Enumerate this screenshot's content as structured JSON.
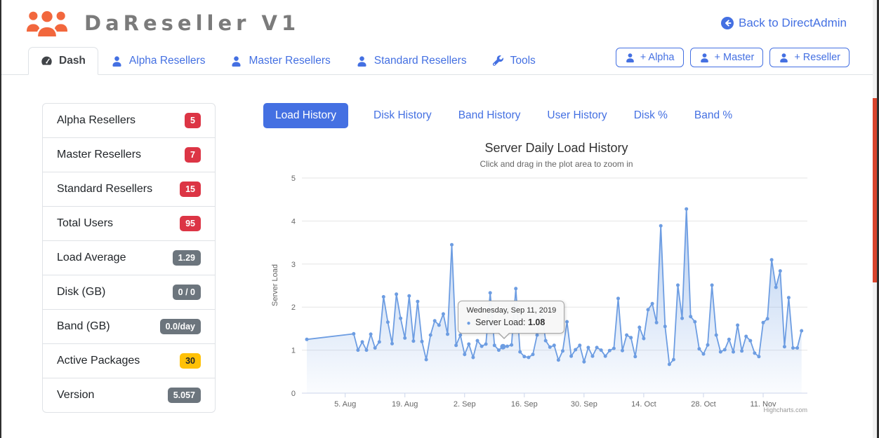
{
  "brand": {
    "display": "DaReseller V1"
  },
  "header": {
    "back_link": "Back to DirectAdmin"
  },
  "nav": {
    "tabs": [
      {
        "label": "Dash",
        "icon": "dashboard-icon",
        "active": true
      },
      {
        "label": "Alpha Resellers",
        "icon": "user-icon",
        "active": false
      },
      {
        "label": "Master Resellers",
        "icon": "user-icon",
        "active": false
      },
      {
        "label": "Standard Resellers",
        "icon": "user-icon",
        "active": false
      },
      {
        "label": "Tools",
        "icon": "wrench-icon",
        "active": false
      }
    ],
    "actions": [
      {
        "label": "+ Alpha",
        "icon": "user-icon"
      },
      {
        "label": "+ Master",
        "icon": "user-icon"
      },
      {
        "label": "+ Reseller",
        "icon": "user-icon"
      }
    ]
  },
  "sidebar": {
    "items": [
      {
        "label": "Alpha Resellers",
        "badge": "5",
        "badge_style": "danger"
      },
      {
        "label": "Master Resellers",
        "badge": "7",
        "badge_style": "danger"
      },
      {
        "label": "Standard Resellers",
        "badge": "15",
        "badge_style": "danger"
      },
      {
        "label": "Total Users",
        "badge": "95",
        "badge_style": "danger"
      },
      {
        "label": "Load Average",
        "badge": "1.29",
        "badge_style": "secondary"
      },
      {
        "label": "Disk (GB)",
        "badge": "0 / 0",
        "badge_style": "secondary"
      },
      {
        "label": "Band (GB)",
        "badge": "0.0/day",
        "badge_style": "secondary"
      },
      {
        "label": "Active Packages",
        "badge": "30",
        "badge_style": "warning"
      },
      {
        "label": "Version",
        "badge": "5.057",
        "badge_style": "secondary"
      }
    ]
  },
  "chart_tabs": [
    {
      "label": "Load History",
      "active": true
    },
    {
      "label": "Disk History",
      "active": false
    },
    {
      "label": "Band History",
      "active": false
    },
    {
      "label": "User History",
      "active": false
    },
    {
      "label": "Disk %",
      "active": false
    },
    {
      "label": "Band %",
      "active": false
    }
  ],
  "chart_data": {
    "type": "area",
    "title": "Server Daily Load History",
    "subtitle": "Click and drag in the plot area to zoom in",
    "ylabel": "Server Load",
    "ylim": [
      0,
      5
    ],
    "yticks": [
      0,
      1,
      2,
      3,
      4,
      5
    ],
    "grid": true,
    "legend": false,
    "xticks": [
      {
        "label": "5. Aug",
        "date": "2019-08-05"
      },
      {
        "label": "19. Aug",
        "date": "2019-08-19"
      },
      {
        "label": "2. Sep",
        "date": "2019-09-02"
      },
      {
        "label": "16. Sep",
        "date": "2019-09-16"
      },
      {
        "label": "30. Sep",
        "date": "2019-09-30"
      },
      {
        "label": "14. Oct",
        "date": "2019-10-14"
      },
      {
        "label": "28. Oct",
        "date": "2019-10-28"
      },
      {
        "label": "11. Nov",
        "date": "2019-11-11"
      }
    ],
    "series": [
      {
        "name": "Server Load",
        "color": "#6d9de2",
        "points": [
          [
            "2019-07-27",
            1.25
          ],
          [
            "2019-08-07",
            1.38
          ],
          [
            "2019-08-08",
            1.0
          ],
          [
            "2019-08-09",
            1.19
          ],
          [
            "2019-08-10",
            1.0
          ],
          [
            "2019-08-11",
            1.37
          ],
          [
            "2019-08-12",
            1.05
          ],
          [
            "2019-08-13",
            1.19
          ],
          [
            "2019-08-14",
            2.24
          ],
          [
            "2019-08-15",
            1.65
          ],
          [
            "2019-08-16",
            1.15
          ],
          [
            "2019-08-17",
            2.3
          ],
          [
            "2019-08-18",
            1.74
          ],
          [
            "2019-08-19",
            1.28
          ],
          [
            "2019-08-20",
            2.26
          ],
          [
            "2019-08-21",
            1.21
          ],
          [
            "2019-08-22",
            2.13
          ],
          [
            "2019-08-23",
            1.2
          ],
          [
            "2019-08-24",
            0.78
          ],
          [
            "2019-08-25",
            1.35
          ],
          [
            "2019-08-26",
            1.68
          ],
          [
            "2019-08-27",
            1.58
          ],
          [
            "2019-08-28",
            1.84
          ],
          [
            "2019-08-29",
            1.37
          ],
          [
            "2019-08-30",
            3.45
          ],
          [
            "2019-08-31",
            1.11
          ],
          [
            "2019-09-01",
            1.35
          ],
          [
            "2019-09-02",
            0.9
          ],
          [
            "2019-09-03",
            1.14
          ],
          [
            "2019-09-04",
            0.83
          ],
          [
            "2019-09-05",
            1.22
          ],
          [
            "2019-09-06",
            1.09
          ],
          [
            "2019-09-07",
            1.14
          ],
          [
            "2019-09-08",
            2.33
          ],
          [
            "2019-09-09",
            1.11
          ],
          [
            "2019-09-10",
            1.0
          ],
          [
            "2019-09-11",
            1.08
          ],
          [
            "2019-09-12",
            1.09
          ],
          [
            "2019-09-13",
            1.12
          ],
          [
            "2019-09-14",
            2.43
          ],
          [
            "2019-09-15",
            0.96
          ],
          [
            "2019-09-16",
            0.85
          ],
          [
            "2019-09-17",
            0.83
          ],
          [
            "2019-09-18",
            0.9
          ],
          [
            "2019-09-19",
            1.35
          ],
          [
            "2019-09-20",
            1.93
          ],
          [
            "2019-09-21",
            1.22
          ],
          [
            "2019-09-22",
            1.07
          ],
          [
            "2019-09-23",
            1.11
          ],
          [
            "2019-09-24",
            0.77
          ],
          [
            "2019-09-25",
            0.98
          ],
          [
            "2019-09-26",
            1.66
          ],
          [
            "2019-09-27",
            0.86
          ],
          [
            "2019-09-28",
            1.01
          ],
          [
            "2019-09-29",
            1.11
          ],
          [
            "2019-09-30",
            0.73
          ],
          [
            "2019-10-01",
            1.06
          ],
          [
            "2019-10-02",
            0.86
          ],
          [
            "2019-10-03",
            1.06
          ],
          [
            "2019-10-04",
            1.0
          ],
          [
            "2019-10-05",
            0.86
          ],
          [
            "2019-10-06",
            0.99
          ],
          [
            "2019-10-07",
            1.04
          ],
          [
            "2019-10-08",
            2.2
          ],
          [
            "2019-10-09",
            0.99
          ],
          [
            "2019-10-10",
            1.35
          ],
          [
            "2019-10-11",
            1.29
          ],
          [
            "2019-10-12",
            0.85
          ],
          [
            "2019-10-13",
            1.53
          ],
          [
            "2019-10-14",
            1.27
          ],
          [
            "2019-10-15",
            1.94
          ],
          [
            "2019-10-16",
            2.08
          ],
          [
            "2019-10-17",
            1.64
          ],
          [
            "2019-10-18",
            3.89
          ],
          [
            "2019-10-19",
            1.55
          ],
          [
            "2019-10-20",
            0.67
          ],
          [
            "2019-10-21",
            0.78
          ],
          [
            "2019-10-22",
            2.51
          ],
          [
            "2019-10-23",
            1.74
          ],
          [
            "2019-10-24",
            4.28
          ],
          [
            "2019-10-25",
            1.78
          ],
          [
            "2019-10-26",
            1.66
          ],
          [
            "2019-10-27",
            1.03
          ],
          [
            "2019-10-28",
            0.91
          ],
          [
            "2019-10-29",
            1.12
          ],
          [
            "2019-10-30",
            2.51
          ],
          [
            "2019-10-31",
            1.35
          ],
          [
            "2019-11-01",
            0.96
          ],
          [
            "2019-11-02",
            1.01
          ],
          [
            "2019-11-03",
            1.25
          ],
          [
            "2019-11-04",
            0.96
          ],
          [
            "2019-11-05",
            1.58
          ],
          [
            "2019-11-06",
            0.98
          ],
          [
            "2019-11-07",
            1.32
          ],
          [
            "2019-11-08",
            1.22
          ],
          [
            "2019-11-09",
            0.93
          ],
          [
            "2019-11-10",
            0.85
          ],
          [
            "2019-11-11",
            1.64
          ],
          [
            "2019-11-12",
            1.73
          ],
          [
            "2019-11-13",
            3.1
          ],
          [
            "2019-11-14",
            2.46
          ],
          [
            "2019-11-15",
            2.84
          ],
          [
            "2019-11-16",
            1.08
          ],
          [
            "2019-11-17",
            2.22
          ],
          [
            "2019-11-18",
            1.05
          ],
          [
            "2019-11-19",
            1.05
          ],
          [
            "2019-11-20",
            1.45
          ]
        ]
      }
    ]
  },
  "tooltip": {
    "date_label": "Wednesday, Sep 11, 2019",
    "series_name": "Server Load",
    "value": "1.08",
    "point_date": "2019-09-11"
  },
  "credits": "Highcharts.com",
  "colors": {
    "accent_blue": "#4470e2",
    "brand_orange": "#f2673d",
    "badge_danger": "#dc3545",
    "badge_secondary": "#6c757d",
    "badge_warning": "#ffc107",
    "series_blue": "#6d9de2",
    "scrollbar_red": "#d9442c"
  }
}
